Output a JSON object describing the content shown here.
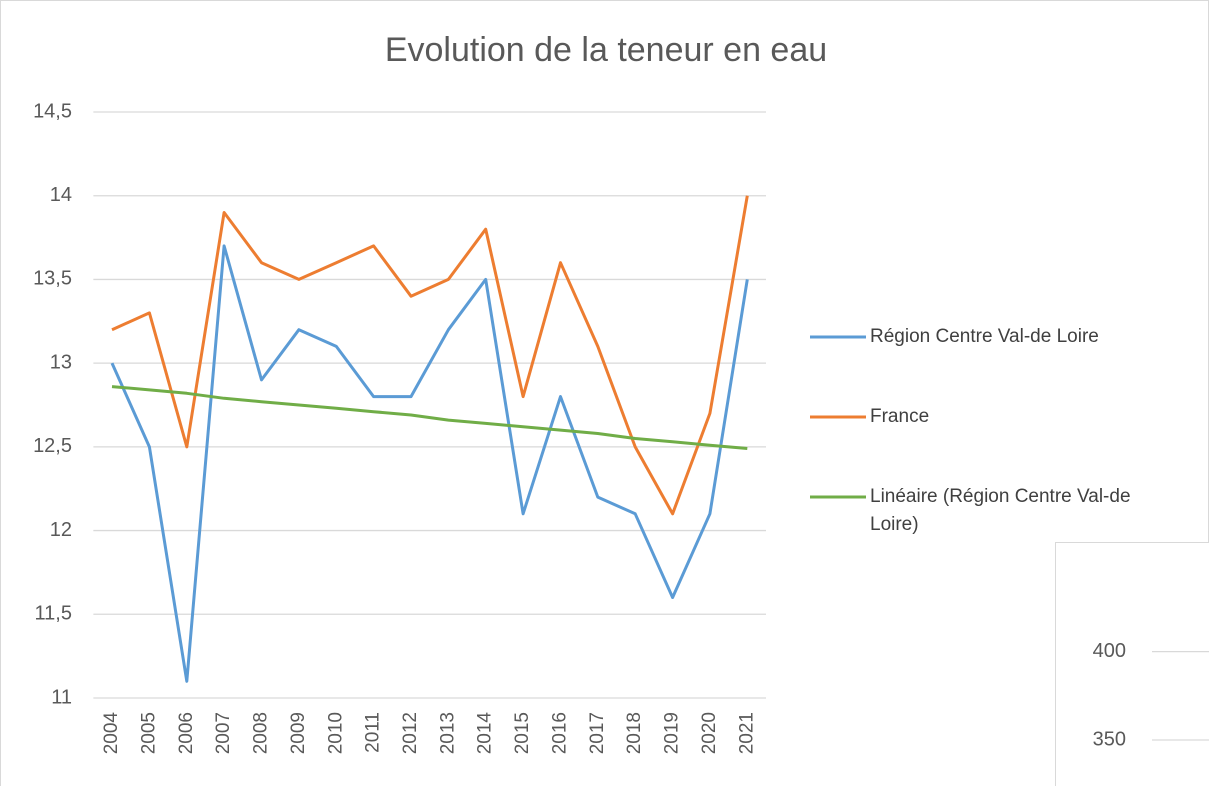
{
  "chart_data": [
    {
      "type": "line",
      "title": "Evolution de la teneur en eau",
      "categories": [
        "2004",
        "2005",
        "2006",
        "2007",
        "2008",
        "2009",
        "2010",
        "2011",
        "2012",
        "2013",
        "2014",
        "2015",
        "2016",
        "2017",
        "2018",
        "2019",
        "2020",
        "2021"
      ],
      "series": [
        {
          "name": "Région Centre Val-de Loire",
          "color": "#5b9bd5",
          "values": [
            13.0,
            12.5,
            11.1,
            13.7,
            12.9,
            13.2,
            13.1,
            12.8,
            12.8,
            13.2,
            13.5,
            12.1,
            12.8,
            12.2,
            12.1,
            11.6,
            12.1,
            13.5
          ]
        },
        {
          "name": "France",
          "color": "#ed7d31",
          "values": [
            13.2,
            13.3,
            12.5,
            13.9,
            13.6,
            13.5,
            13.6,
            13.7,
            13.4,
            13.5,
            13.8,
            12.8,
            13.6,
            13.1,
            12.5,
            12.1,
            12.7,
            14.0
          ]
        },
        {
          "name": "Linéaire (Région Centre Val-de Loire)",
          "color": "#70ad47",
          "values": [
            12.86,
            12.84,
            12.82,
            12.79,
            12.77,
            12.75,
            12.73,
            12.71,
            12.69,
            12.66,
            12.64,
            12.62,
            12.6,
            12.58,
            12.55,
            12.53,
            12.51,
            12.49
          ]
        }
      ],
      "ylim": [
        11,
        14.5
      ],
      "yticks": [
        11,
        {
          "value": 11.5,
          "label": "11,5"
        },
        12,
        {
          "value": 12.5,
          "label": "12,5"
        },
        13,
        {
          "value": 13.5,
          "label": "13,5"
        },
        14,
        {
          "value": 14.5,
          "label": "14,5"
        }
      ],
      "grid": true,
      "legend": "right"
    },
    {
      "type": "line",
      "ylim": [
        324,
        462
      ],
      "yticks": [
        350,
        400
      ],
      "grid": true
    }
  ]
}
